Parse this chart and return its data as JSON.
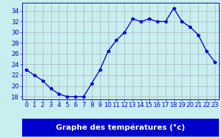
{
  "hours": [
    0,
    1,
    2,
    3,
    4,
    5,
    6,
    7,
    8,
    9,
    10,
    11,
    12,
    13,
    14,
    15,
    16,
    17,
    18,
    19,
    20,
    21,
    22,
    23
  ],
  "temps": [
    23.0,
    22.0,
    21.0,
    19.5,
    18.5,
    18.0,
    18.0,
    18.0,
    20.5,
    23.0,
    26.5,
    28.5,
    30.0,
    32.5,
    32.0,
    32.5,
    32.0,
    32.0,
    34.5,
    32.0,
    31.0,
    29.5,
    26.5,
    24.5
  ],
  "xlabel": "Graphe des températures (°c)",
  "xlim": [
    -0.5,
    23.5
  ],
  "ylim": [
    17.5,
    35.5
  ],
  "yticks": [
    18,
    20,
    22,
    24,
    26,
    28,
    30,
    32,
    34
  ],
  "xticks": [
    0,
    1,
    2,
    3,
    4,
    5,
    6,
    7,
    8,
    9,
    10,
    11,
    12,
    13,
    14,
    15,
    16,
    17,
    18,
    19,
    20,
    21,
    22,
    23
  ],
  "line_color": "#0000cc",
  "marker": "*",
  "bg_color": "#c8eef0",
  "grid_color": "#b0b0b0",
  "axes_bg": "#c8eef0",
  "xlabel_bg": "#0000cc",
  "xlabel_color": "#ffffff",
  "xlabel_fontsize": 8,
  "tick_fontsize": 6.5,
  "linewidth": 1.0,
  "markersize": 3.5
}
